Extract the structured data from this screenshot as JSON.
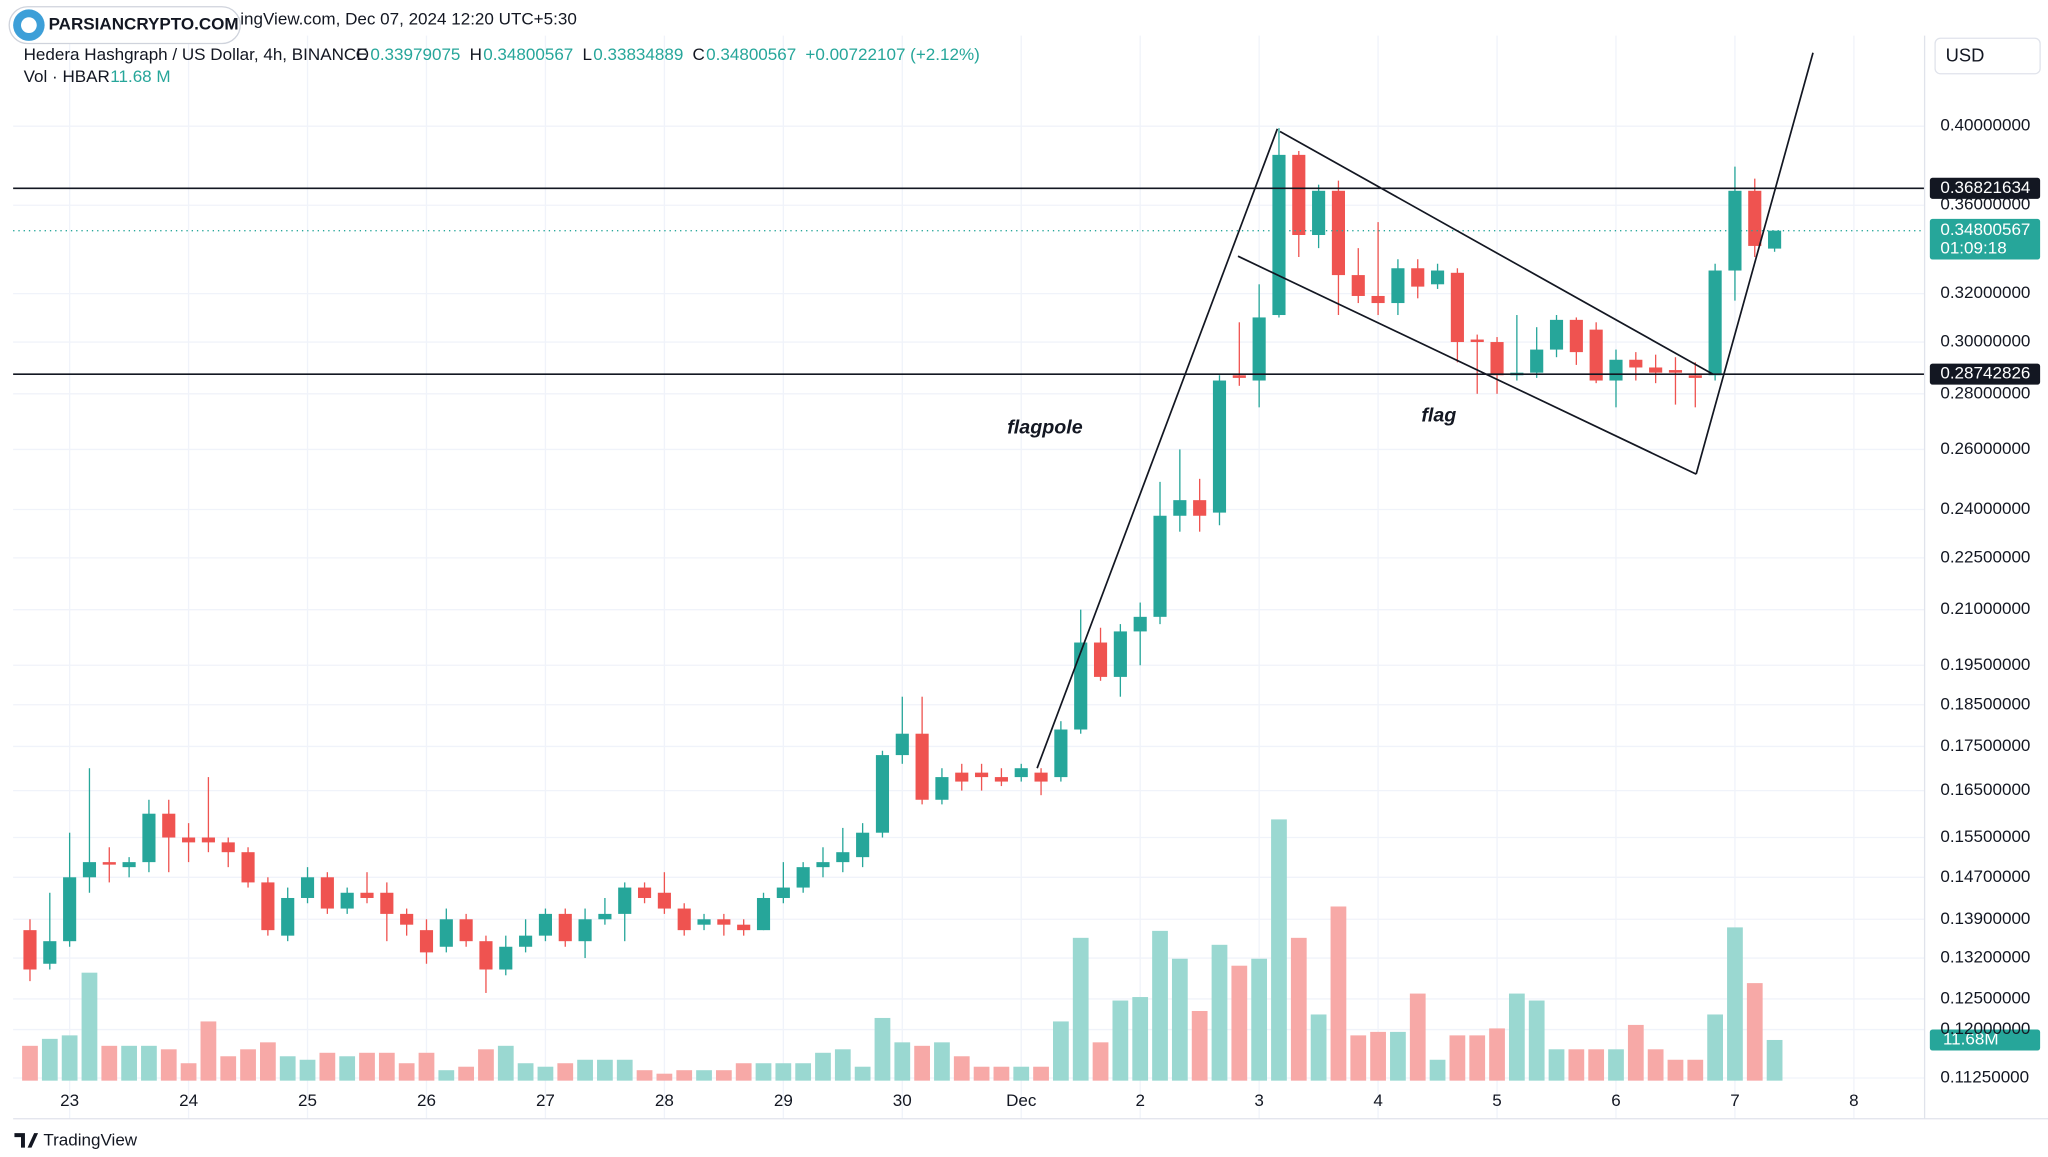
{
  "chart_data": {
    "type": "candlestick",
    "source_line": "ingView.com, Dec 07, 2024 12:20 UTC+5:30",
    "watermark": "PARSIANCRYPTO.COM",
    "symbol": "Hedera Hashgraph / US Dollar, 4h, BINANCE",
    "ohlc_letters": [
      "O",
      "H",
      "L",
      "C"
    ],
    "change": "+0.00722107 (+2.12%)",
    "volume_title": "Vol · HBAR",
    "volume_label": "11.68 M",
    "currency": "USD",
    "countdown": "01:09:18",
    "branding": "TradingView",
    "annotations": [
      "flagpole",
      "flag"
    ],
    "log_scale": true,
    "grid": true,
    "up_color": "#26a69a",
    "down_color": "#ef5350",
    "volume_up_color": "#9ad8d1",
    "volume_down_color": "#f7a9a7",
    "hlines": [
      0.36821634,
      0.28742826
    ],
    "open": [
      0.137,
      0.131,
      0.135,
      0.147,
      0.15,
      0.149,
      0.15,
      0.16,
      0.155,
      0.155,
      0.154,
      0.152,
      0.146,
      0.136,
      0.143,
      0.147,
      0.141,
      0.144,
      0.144,
      0.14,
      0.137,
      0.134,
      0.139,
      0.135,
      0.13,
      0.134,
      0.136,
      0.14,
      0.135,
      0.139,
      0.14,
      0.145,
      0.144,
      0.141,
      0.138,
      0.139,
      0.138,
      0.137,
      0.143,
      0.145,
      0.149,
      0.15,
      0.151,
      0.156,
      0.173,
      0.178,
      0.163,
      0.169,
      0.169,
      0.168,
      0.168,
      0.169,
      0.168,
      0.179,
      0.201,
      0.192,
      0.204,
      0.208,
      0.238,
      0.243,
      0.239,
      0.287,
      0.285,
      0.311,
      0.385,
      0.346,
      0.367,
      0.328,
      0.319,
      0.316,
      0.331,
      0.324,
      0.329,
      0.301,
      0.3,
      0.287,
      0.288,
      0.297,
      0.309,
      0.305,
      0.285,
      0.293,
      0.29,
      0.289,
      0.287,
      0.287,
      0.33,
      0.367,
      0.33979075
    ],
    "high": [
      0.139,
      0.144,
      0.156,
      0.17,
      0.153,
      0.151,
      0.163,
      0.163,
      0.158,
      0.168,
      0.155,
      0.153,
      0.147,
      0.145,
      0.149,
      0.148,
      0.145,
      0.148,
      0.146,
      0.141,
      0.139,
      0.141,
      0.14,
      0.136,
      0.136,
      0.139,
      0.141,
      0.141,
      0.141,
      0.143,
      0.146,
      0.146,
      0.148,
      0.142,
      0.14,
      0.14,
      0.139,
      0.144,
      0.15,
      0.15,
      0.153,
      0.157,
      0.158,
      0.174,
      0.187,
      0.187,
      0.17,
      0.171,
      0.171,
      0.17,
      0.171,
      0.17,
      0.181,
      0.21,
      0.205,
      0.206,
      0.212,
      0.249,
      0.26,
      0.25,
      0.287,
      0.308,
      0.324,
      0.399,
      0.387,
      0.37,
      0.372,
      0.34,
      0.352,
      0.335,
      0.335,
      0.333,
      0.331,
      0.303,
      0.302,
      0.311,
      0.306,
      0.311,
      0.31,
      0.308,
      0.297,
      0.296,
      0.295,
      0.294,
      0.292,
      0.333,
      0.379,
      0.373,
      0.34800567
    ],
    "low": [
      0.128,
      0.13,
      0.134,
      0.144,
      0.146,
      0.147,
      0.148,
      0.148,
      0.15,
      0.152,
      0.149,
      0.145,
      0.136,
      0.135,
      0.142,
      0.14,
      0.14,
      0.142,
      0.135,
      0.136,
      0.131,
      0.133,
      0.134,
      0.126,
      0.129,
      0.133,
      0.135,
      0.134,
      0.132,
      0.138,
      0.135,
      0.142,
      0.14,
      0.136,
      0.137,
      0.136,
      0.136,
      0.137,
      0.142,
      0.144,
      0.147,
      0.148,
      0.149,
      0.155,
      0.171,
      0.162,
      0.162,
      0.165,
      0.165,
      0.166,
      0.167,
      0.164,
      0.167,
      0.178,
      0.191,
      0.187,
      0.195,
      0.206,
      0.233,
      0.233,
      0.235,
      0.283,
      0.275,
      0.31,
      0.336,
      0.34,
      0.311,
      0.316,
      0.311,
      0.311,
      0.318,
      0.322,
      0.292,
      0.28,
      0.28,
      0.285,
      0.286,
      0.294,
      0.291,
      0.284,
      0.275,
      0.285,
      0.284,
      0.276,
      0.275,
      0.285,
      0.317,
      0.336,
      0.33834889
    ],
    "close": [
      0.13,
      0.135,
      0.147,
      0.15,
      0.1495,
      0.15,
      0.16,
      0.155,
      0.154,
      0.154,
      0.152,
      0.146,
      0.137,
      0.143,
      0.147,
      0.141,
      0.144,
      0.143,
      0.14,
      0.138,
      0.133,
      0.139,
      0.135,
      0.13,
      0.134,
      0.136,
      0.14,
      0.135,
      0.139,
      0.14,
      0.145,
      0.143,
      0.141,
      0.137,
      0.139,
      0.138,
      0.137,
      0.143,
      0.145,
      0.149,
      0.15,
      0.152,
      0.156,
      0.173,
      0.178,
      0.163,
      0.168,
      0.167,
      0.168,
      0.167,
      0.17,
      0.167,
      0.179,
      0.201,
      0.192,
      0.204,
      0.208,
      0.238,
      0.243,
      0.238,
      0.285,
      0.286,
      0.31,
      0.385,
      0.346,
      0.367,
      0.328,
      0.319,
      0.316,
      0.331,
      0.323,
      0.33,
      0.3,
      0.3,
      0.287,
      0.288,
      0.297,
      0.309,
      0.296,
      0.285,
      0.293,
      0.29,
      0.288,
      0.288,
      0.286,
      0.33,
      0.367,
      0.341,
      0.34800567
    ],
    "volume": {
      "name": "Vol",
      "axis": "y2",
      "values": [
        10,
        12,
        13,
        31,
        10,
        10,
        10,
        9,
        5,
        17,
        7,
        9,
        11,
        7,
        6,
        8,
        7,
        8,
        8,
        5,
        8,
        3,
        4,
        9,
        10,
        5,
        4,
        5,
        6,
        6,
        6,
        3,
        2,
        3,
        3,
        3,
        5,
        5,
        5,
        5,
        8,
        9,
        4,
        18,
        11,
        10,
        11,
        7,
        4,
        4,
        4,
        4,
        17,
        41,
        11,
        23,
        24,
        43,
        35,
        20,
        39,
        33,
        35,
        75,
        41,
        19,
        50,
        13,
        14,
        14,
        25,
        6,
        13,
        13,
        15,
        25,
        23,
        9,
        9,
        9,
        9,
        16,
        9,
        6,
        6,
        19,
        44,
        28,
        11.68
      ],
      "value_labels": [
        null,
        null,
        null,
        null,
        null,
        null,
        null,
        null,
        null,
        null,
        null,
        null,
        null,
        null,
        null,
        null,
        null,
        null,
        null,
        null,
        null,
        null,
        null,
        null,
        null,
        null,
        null,
        null,
        null,
        null,
        null,
        null,
        null,
        null,
        null,
        null,
        null,
        null,
        null,
        null,
        null,
        null,
        null,
        null,
        null,
        null,
        null,
        null,
        null,
        null,
        null,
        null,
        null,
        null,
        null,
        null,
        null,
        null,
        null,
        null,
        null,
        null,
        null,
        null,
        null,
        null,
        null,
        null,
        null,
        null,
        null,
        null,
        null,
        null,
        null,
        null,
        null,
        null,
        null,
        null,
        null,
        null,
        null,
        null,
        null,
        null,
        null,
        null,
        "11.68M"
      ]
    },
    "xlim": [
      -0.85,
      95.5
    ],
    "xticks": [
      {
        "value": 2,
        "label": "23"
      },
      {
        "value": 8,
        "label": "24"
      },
      {
        "value": 14,
        "label": "25"
      },
      {
        "value": 20,
        "label": "26"
      },
      {
        "value": 26,
        "label": "27"
      },
      {
        "value": 32,
        "label": "28"
      },
      {
        "value": 38,
        "label": "29"
      },
      {
        "value": 44,
        "label": "30"
      },
      {
        "value": 50,
        "label": "Dec"
      },
      {
        "value": 56,
        "label": "2"
      },
      {
        "value": 62,
        "label": "3"
      },
      {
        "value": 68,
        "label": "4"
      },
      {
        "value": 74,
        "label": "5"
      },
      {
        "value": 80,
        "label": "6"
      },
      {
        "value": 86,
        "label": "7"
      },
      {
        "value": 92,
        "label": "8"
      }
    ],
    "ylim": [
      0.1121,
      0.4513
    ],
    "yticks": [
      {
        "value": 0.4,
        "label": "0.40000000"
      },
      {
        "value": 0.36,
        "label": "0.36000000"
      },
      {
        "value": 0.32,
        "label": "0.32000000"
      },
      {
        "value": 0.3,
        "label": "0.30000000"
      },
      {
        "value": 0.28,
        "label": "0.28000000"
      },
      {
        "value": 0.26,
        "label": "0.26000000"
      },
      {
        "value": 0.24,
        "label": "0.24000000"
      },
      {
        "value": 0.225,
        "label": "0.22500000"
      },
      {
        "value": 0.21,
        "label": "0.21000000"
      },
      {
        "value": 0.195,
        "label": "0.19500000"
      },
      {
        "value": 0.185,
        "label": "0.18500000"
      },
      {
        "value": 0.175,
        "label": "0.17500000"
      },
      {
        "value": 0.165,
        "label": "0.16500000"
      },
      {
        "value": 0.155,
        "label": "0.15500000"
      },
      {
        "value": 0.147,
        "label": "0.14700000"
      },
      {
        "value": 0.139,
        "label": "0.13900000"
      },
      {
        "value": 0.132,
        "label": "0.13200000"
      },
      {
        "value": 0.125,
        "label": "0.12500000"
      },
      {
        "value": 0.12,
        "label": "0.12000000"
      },
      {
        "value": 0.1125,
        "label": "0.11250000"
      }
    ],
    "y2lim": [
      0,
      300
    ]
  }
}
